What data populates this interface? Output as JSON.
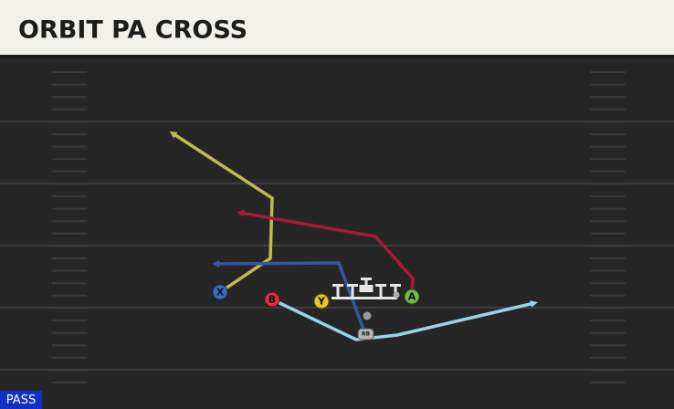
{
  "header": {
    "title": "ORBIT PA CROSS"
  },
  "play_type": "PASS",
  "players": [
    {
      "label": "X"
    },
    {
      "label": "B"
    },
    {
      "label": "Y"
    },
    {
      "label": "A"
    },
    {
      "label": "RB"
    }
  ]
}
